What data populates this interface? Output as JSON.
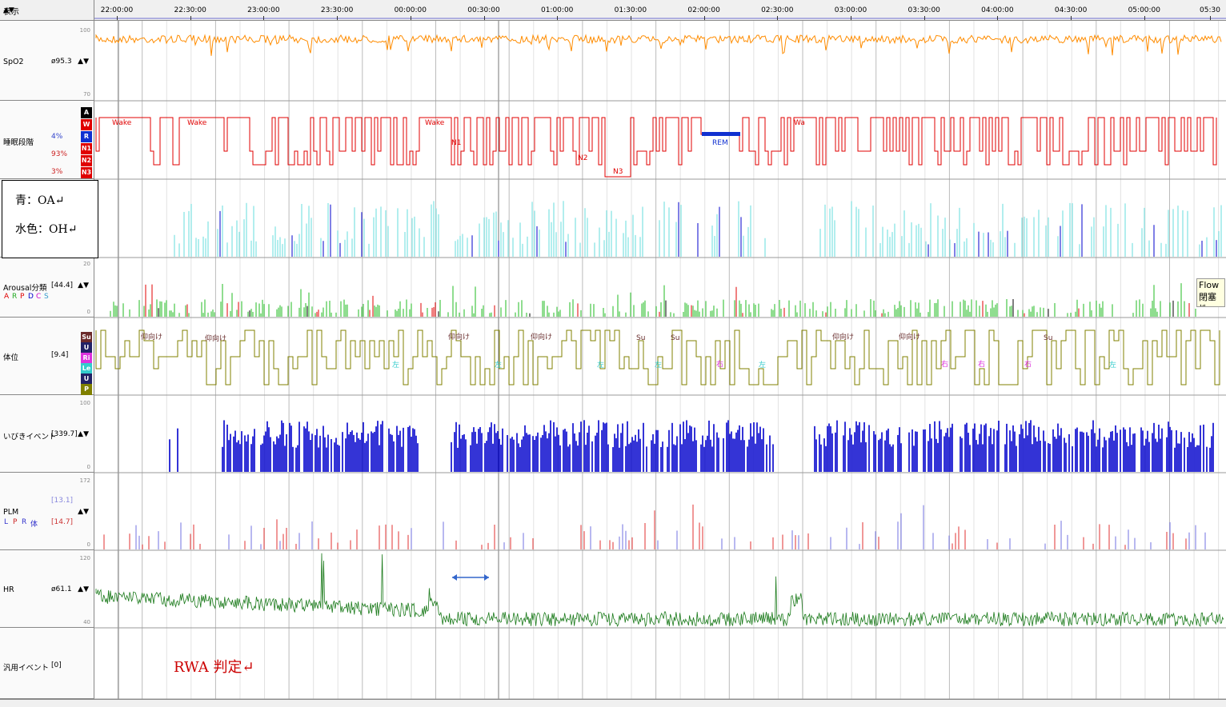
{
  "header": {
    "display_label": "表示",
    "sort_arrow": "▲▼"
  },
  "time_axis": {
    "ticks": [
      "22:00:00",
      "22:30:00",
      "23:00:00",
      "23:30:00",
      "00:00:00",
      "00:30:00",
      "01:00:00",
      "01:30:00",
      "02:00:00",
      "02:30:00",
      "03:00:00",
      "03:30:00",
      "04:00:00",
      "04:30:00",
      "05:00:00",
      "05:30"
    ]
  },
  "rows": {
    "spo2": {
      "name": "SpO2",
      "value": "ø95.3",
      "arrows": "▲▼",
      "scale_top": "100",
      "scale_bottom": "70"
    },
    "sleep_stage": {
      "name": "睡眠段階",
      "pct_r": "4%",
      "pct_n": "93%",
      "pct_n3": "3%",
      "keys": [
        "A",
        "W",
        "R",
        "N1",
        "N2",
        "N3"
      ],
      "labels": [
        "Wake",
        "Wake",
        "Wake",
        "N1",
        "N2",
        "N3",
        "REM",
        "Wa"
      ]
    },
    "arousal": {
      "name": "Arousal分類",
      "value": "[44.4]",
      "arrows": "▲▼",
      "codes": [
        "A",
        "R",
        "P",
        "D",
        "C",
        "S"
      ],
      "scale_top": "20",
      "scale_bottom": "0"
    },
    "position": {
      "name": "体位",
      "value": "[9.4]",
      "keys": [
        "Su",
        "U",
        "Ri",
        "Le",
        "U",
        "P"
      ],
      "labels": [
        "仰向け",
        "仰向け",
        "仰向け",
        "仰向け",
        "仰向け",
        "仰向け",
        "Su",
        "Su",
        "左",
        "左",
        "左",
        "左",
        "左",
        "左",
        "右",
        "右",
        "右",
        "右",
        "Su"
      ]
    },
    "snore": {
      "name": "いびきイベント",
      "value": "[339.7]",
      "arrows": "▲▼",
      "scale_top": "100",
      "scale_bottom": "0"
    },
    "plm": {
      "name": "PLM",
      "codes": [
        "L",
        "P",
        "R",
        "体"
      ],
      "value_top": "[13.1]",
      "value_bottom": "[14.7]",
      "arrows": "▲▼",
      "scale_top": "172",
      "scale_bottom": "0"
    },
    "hr": {
      "name": "HR",
      "value": "ø61.1",
      "arrows": "▲▼",
      "scale_top": "120",
      "scale_bottom": "40"
    },
    "general_event": {
      "name": "汎用イベント",
      "value": "[0]"
    }
  },
  "legend_box": {
    "line1": "青：OA↵",
    "line2": "水色：OH↵"
  },
  "annotation": {
    "rwa": "RWA 判定↵"
  },
  "flow_tooltip": {
    "line1": "Flow",
    "line2": "閉塞性"
  },
  "colors": {
    "spo2": "#ff8c00",
    "stage": "#e00000",
    "oa": "#0000cc",
    "oh": "#66dddd",
    "arousal": "#22bb22",
    "position": "#808000",
    "snore": "#0000cc",
    "plm_red": "#e03030",
    "plm_blue": "#7070e0",
    "hr": "#1a7a1a"
  }
}
